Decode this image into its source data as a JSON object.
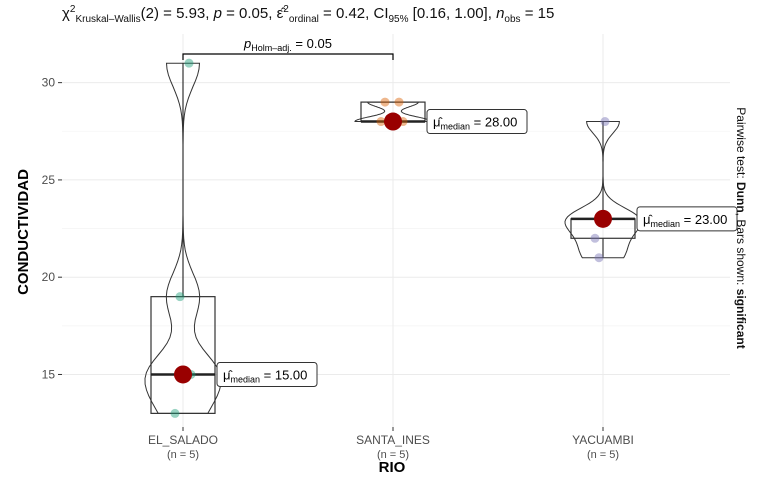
{
  "subtitle": {
    "chi": "χ",
    "chi_sup": "2",
    "test_sub": "Kruskal–Wallis",
    "stat": "(2) = 5.93, ",
    "p_label": "p",
    "p_value": " = 0.05, ",
    "eps": "ε̂",
    "eps_sup": "2",
    "eps_sub": "ordinal",
    "eps_value": " = 0.42, CI",
    "ci_sub": "95%",
    "ci_value": " [0.16, 1.00], ",
    "n_label": "n",
    "n_sub": "obs",
    "n_value": " = 15"
  },
  "caption": {
    "prefix": "Pairwise test: ",
    "test": "Dunn",
    "middle": ", Bars shown: ",
    "shown": "significant"
  },
  "colors": {
    "EL_SALADO": "#1b9e77",
    "SANTA_INES": "#d95f02",
    "YACUAMBI": "#7570b3",
    "median_point": "#990000"
  },
  "chart_data": {
    "type": "box-violin",
    "xlabel": "RIO",
    "ylabel": "CONDUCTIVIDAD",
    "ylim": [
      12.3,
      32.5
    ],
    "yticks": [
      15,
      20,
      25,
      30
    ],
    "grid": true,
    "categories": [
      "EL_SALADO",
      "SANTA_INES",
      "YACUAMBI"
    ],
    "n_labels": [
      "(n = 5)",
      "(n = 5)",
      "(n = 5)"
    ],
    "groups": [
      {
        "name": "EL_SALADO",
        "points": [
          13,
          15,
          15,
          19,
          31
        ],
        "box": {
          "q1": 13,
          "median": 15,
          "q3": 19,
          "min": 13,
          "max": 31
        },
        "median": 15,
        "median_label": "15.00"
      },
      {
        "name": "SANTA_INES",
        "points": [
          28,
          28,
          28,
          29,
          29
        ],
        "box": {
          "q1": 28,
          "median": 28,
          "q3": 29,
          "min": 28,
          "max": 29
        },
        "median": 28,
        "median_label": "28.00"
      },
      {
        "name": "YACUAMBI",
        "points": [
          21,
          22,
          23,
          23,
          28
        ],
        "box": {
          "q1": 22,
          "median": 23,
          "q3": 23,
          "min": 21,
          "max": 28
        },
        "median": 23,
        "median_label": "23.00"
      }
    ],
    "pairwise": [
      {
        "from": "EL_SALADO",
        "to": "SANTA_INES",
        "label_prefix": "p",
        "label_sub": "Holm–adj.",
        "label_value": " = 0.05"
      }
    ]
  }
}
